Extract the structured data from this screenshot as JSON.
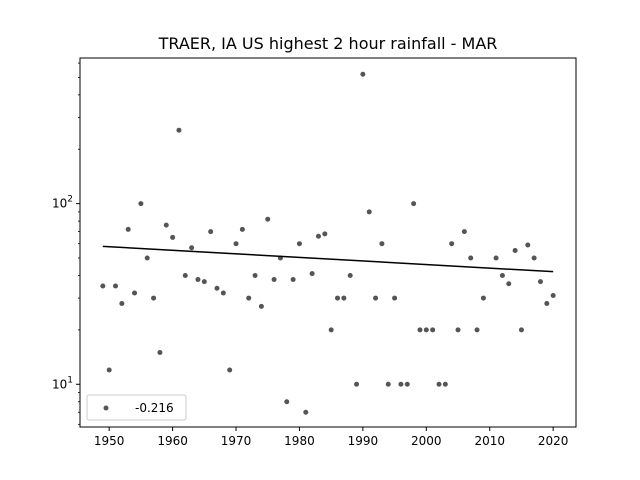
{
  "chart_data": {
    "type": "scatter",
    "title": "TRAER, IA US highest 2 hour rainfall - MAR",
    "xlabel": "",
    "ylabel": "",
    "y_scale": "log",
    "xlim": [
      1945.4,
      2023.6
    ],
    "ylim": [
      5.8,
      640
    ],
    "x_ticks": [
      1950,
      1960,
      1970,
      1980,
      1990,
      2000,
      2010,
      2020
    ],
    "y_ticks": [
      {
        "value": 10,
        "base": "10",
        "exp": "1"
      },
      {
        "value": 100,
        "base": "10",
        "exp": "2"
      }
    ],
    "grid": false,
    "legend_position": "lower-left",
    "point_color": "#555555",
    "line_color": "#000000",
    "series": [
      {
        "name": "-0.216",
        "points": [
          [
            1949,
            35
          ],
          [
            1950,
            12
          ],
          [
            1951,
            35
          ],
          [
            1952,
            28
          ],
          [
            1953,
            72
          ],
          [
            1954,
            32
          ],
          [
            1955,
            100
          ],
          [
            1956,
            50
          ],
          [
            1957,
            30
          ],
          [
            1958,
            15
          ],
          [
            1959,
            76
          ],
          [
            1960,
            65
          ],
          [
            1961,
            255
          ],
          [
            1962,
            40
          ],
          [
            1963,
            57
          ],
          [
            1964,
            38
          ],
          [
            1965,
            37
          ],
          [
            1966,
            70
          ],
          [
            1967,
            34
          ],
          [
            1968,
            32
          ],
          [
            1969,
            12
          ],
          [
            1970,
            60
          ],
          [
            1971,
            72
          ],
          [
            1972,
            30
          ],
          [
            1973,
            40
          ],
          [
            1974,
            27
          ],
          [
            1975,
            82
          ],
          [
            1976,
            38
          ],
          [
            1977,
            50
          ],
          [
            1978,
            8
          ],
          [
            1979,
            38
          ],
          [
            1980,
            60
          ],
          [
            1981,
            7
          ],
          [
            1982,
            41
          ],
          [
            1983,
            66
          ],
          [
            1984,
            68
          ],
          [
            1985,
            20
          ],
          [
            1986,
            30
          ],
          [
            1987,
            30
          ],
          [
            1988,
            40
          ],
          [
            1989,
            10
          ],
          [
            1990,
            520
          ],
          [
            1991,
            90
          ],
          [
            1992,
            30
          ],
          [
            1993,
            60
          ],
          [
            1994,
            10
          ],
          [
            1995,
            30
          ],
          [
            1996,
            10
          ],
          [
            1997,
            10
          ],
          [
            1998,
            100
          ],
          [
            1999,
            20
          ],
          [
            2000,
            20
          ],
          [
            2001,
            20
          ],
          [
            2002,
            10
          ],
          [
            2003,
            10
          ],
          [
            2004,
            60
          ],
          [
            2005,
            20
          ],
          [
            2006,
            70
          ],
          [
            2007,
            50
          ],
          [
            2008,
            20
          ],
          [
            2009,
            30
          ],
          [
            2011,
            50
          ],
          [
            2012,
            40
          ],
          [
            2013,
            36
          ],
          [
            2014,
            55
          ],
          [
            2015,
            20
          ],
          [
            2016,
            59
          ],
          [
            2017,
            50
          ],
          [
            2018,
            37
          ],
          [
            2019,
            28
          ],
          [
            2020,
            31
          ]
        ]
      }
    ],
    "trendline": {
      "x": [
        1949,
        2020
      ],
      "y": [
        58,
        42
      ]
    }
  }
}
